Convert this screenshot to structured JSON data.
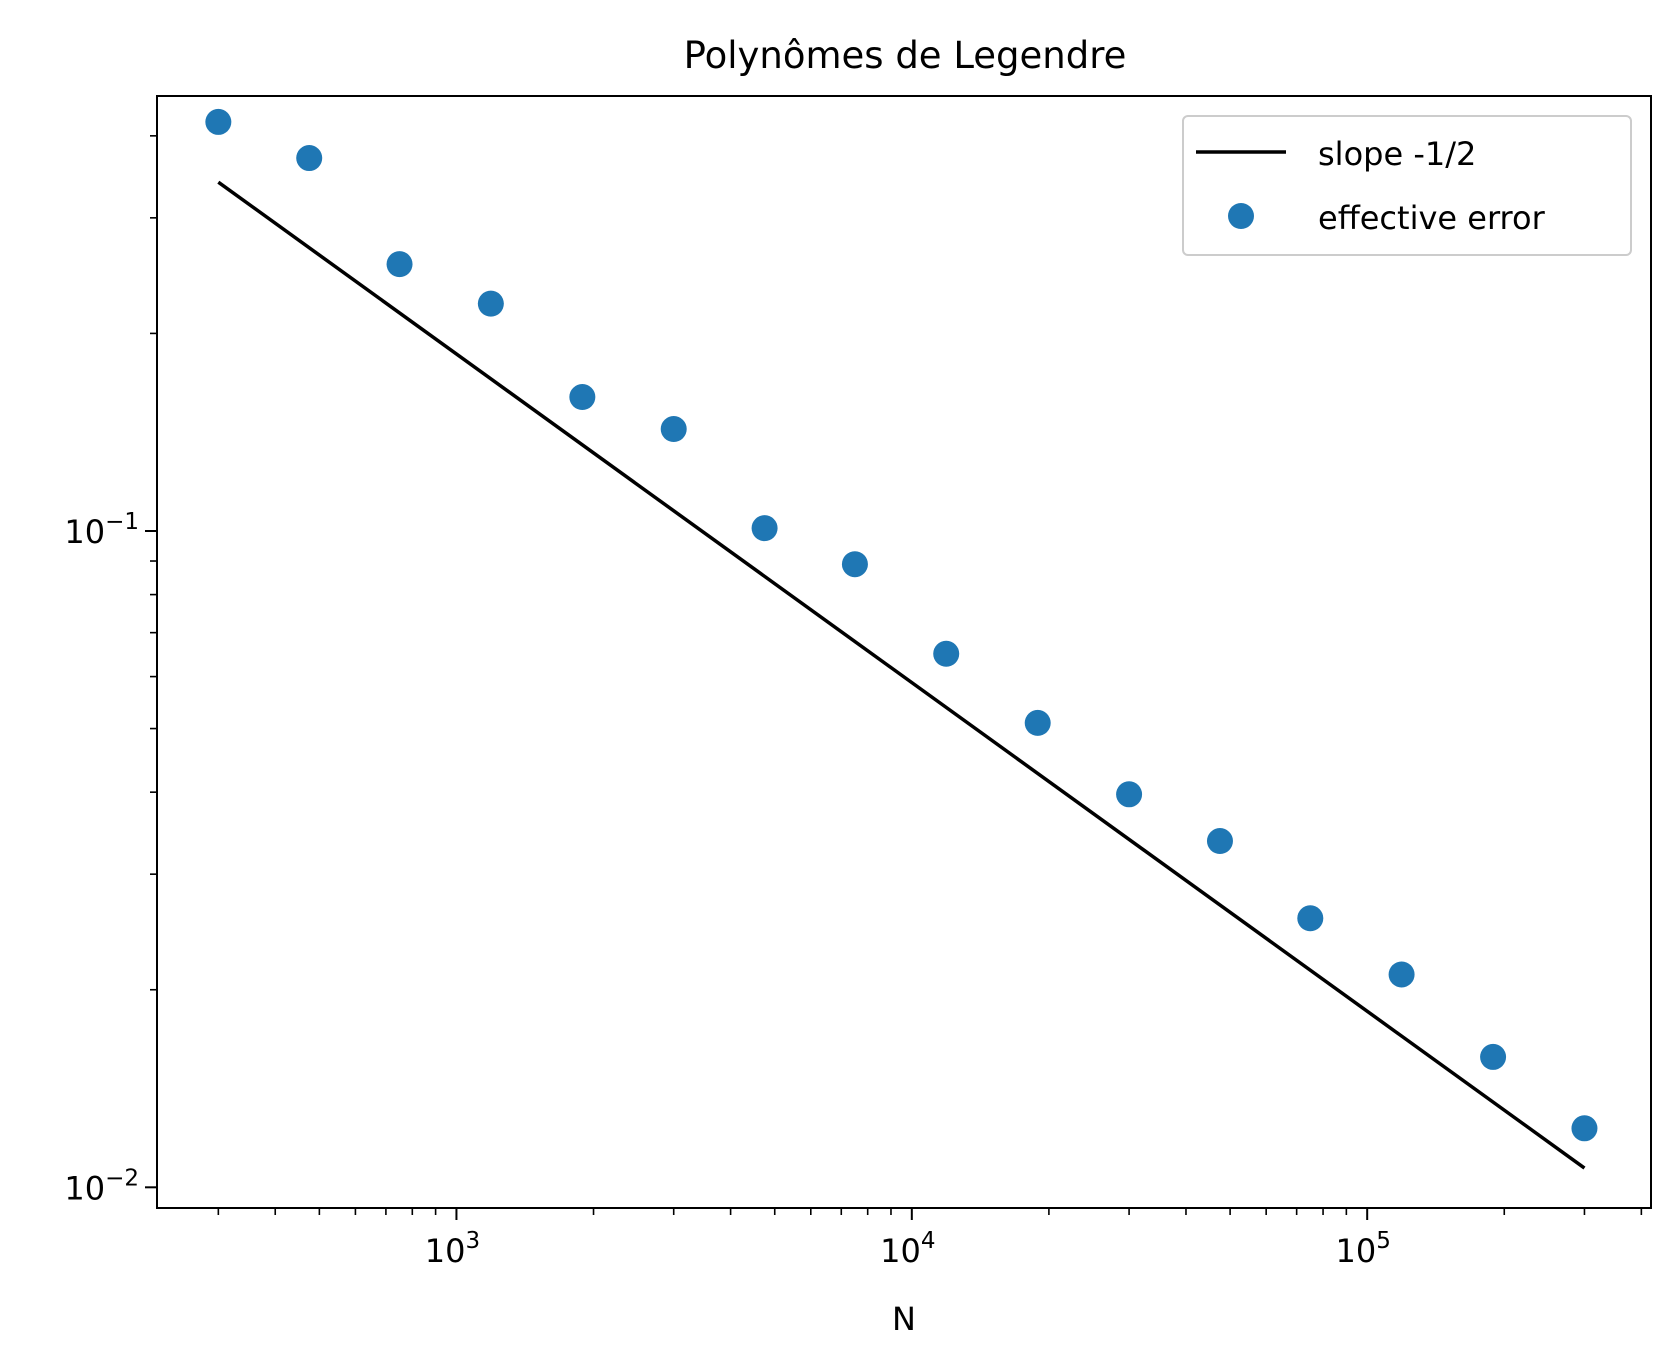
{
  "chart_data": {
    "type": "scatter",
    "title": "Polynômes de Legendre",
    "xlabel": "N",
    "ylabel": "",
    "xscale": "log",
    "yscale": "log",
    "xlim": [
      220,
      420000
    ],
    "ylim": [
      0.0093,
      0.46
    ],
    "x_major_ticks": [
      {
        "value": 1000,
        "base": "10",
        "exp": "3"
      },
      {
        "value": 10000,
        "base": "10",
        "exp": "4"
      },
      {
        "value": 100000,
        "base": "10",
        "exp": "5"
      }
    ],
    "y_major_ticks": [
      {
        "value": 0.1,
        "base": "10",
        "exp": "−1"
      },
      {
        "value": 0.01,
        "base": "10",
        "exp": "−2"
      }
    ],
    "grid": false,
    "legend_position": "top-right",
    "series": [
      {
        "name": "slope -1/2",
        "kind": "line",
        "color": "#000000",
        "x": [
          300,
          300000
        ],
        "y": [
          0.34,
          0.0107
        ]
      },
      {
        "name": "effective error",
        "kind": "scatter",
        "color": "#1f77b4",
        "x": [
          300,
          475,
          750,
          1190,
          1890,
          3000,
          4750,
          7500,
          11900,
          18900,
          30000,
          47500,
          75000,
          119000,
          189000,
          300000
        ],
        "y": [
          0.42,
          0.37,
          0.255,
          0.222,
          0.16,
          0.143,
          0.101,
          0.089,
          0.065,
          0.051,
          0.0397,
          0.0337,
          0.0257,
          0.0211,
          0.0158,
          0.0123
        ]
      }
    ]
  }
}
